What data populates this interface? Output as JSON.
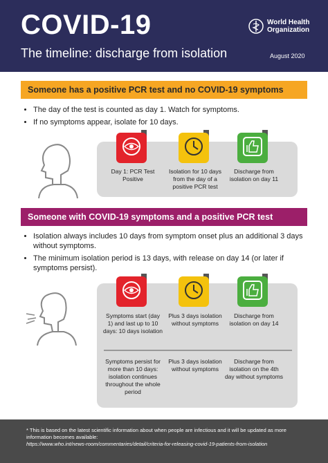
{
  "header": {
    "title": "COVID-19",
    "subtitle": "The timeline: discharge from isolation",
    "organization": "World Health Organization",
    "date": "August 2020"
  },
  "sections": [
    {
      "heading": "Someone has a positive PCR test and no COVID-19 symptoms",
      "bullets": [
        "The day of the test is counted as day 1. Watch for symptoms.",
        "If no symptoms appear, isolate for 10 days."
      ],
      "steps": [
        "Day 1: PCR Test Positive",
        "Isolation for 10 days from the day of a positive PCR test",
        "Discharge from isolation on day 11"
      ]
    },
    {
      "heading": "Someone with COVID-19 symptoms and a positive PCR test",
      "bullets": [
        "Isolation always includes 10 days from symptom onset plus an additional 3 days without symptoms.",
        "The minimum isolation period is 13 days, with release on day 14 (or later if symptoms persist)."
      ],
      "steps": [
        "Symptoms start (day 1) and last up to 10 days: 10 days isolation",
        "Plus 3 days isolation without symptoms",
        "Discharge from isolation on day 14"
      ],
      "alternative_steps": [
        "Symptoms persist for more than 10 days: isolation continues throughout the whole period",
        "Plus 3 days isolation without symptoms",
        "Discharge from isolation on the 4th day without symptoms"
      ]
    }
  ],
  "footer": {
    "note": "* This is based on the latest scientific information about when people are infectious and it will be updated as more information becomes available:",
    "url": "https://www.who.int/news-room/commentaries/detail/criteria-for-releasing-covid-19-patients-from-isolation"
  }
}
